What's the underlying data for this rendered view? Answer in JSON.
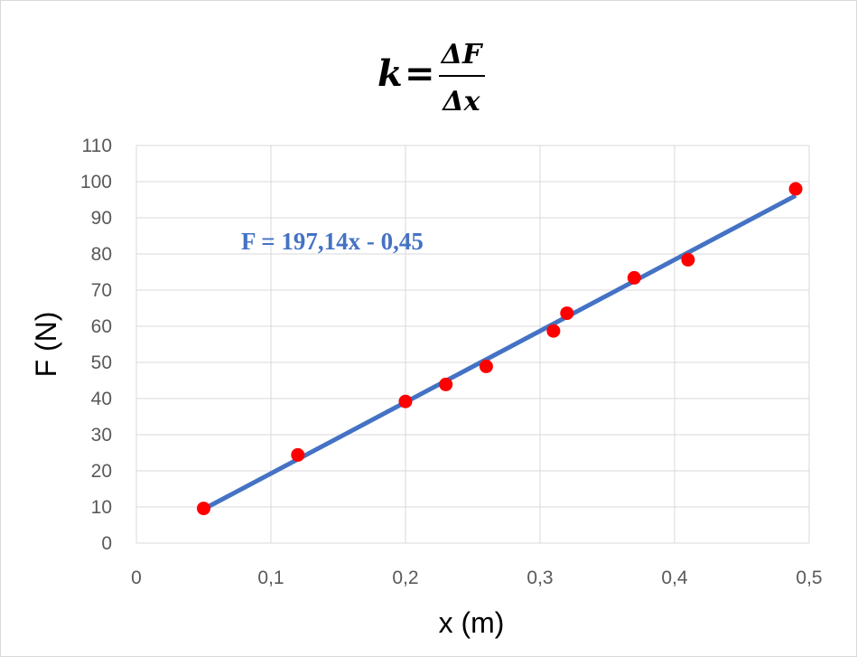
{
  "chart_data": {
    "type": "scatter",
    "title": {
      "lhs": "k",
      "eq": "=",
      "numerator": "ΔF",
      "denominator": "Δx"
    },
    "xlabel": "x (m)",
    "ylabel": "F (N)",
    "xlim": [
      0,
      0.5
    ],
    "ylim": [
      0,
      110
    ],
    "x_ticks": [
      "0",
      "0,1",
      "0,2",
      "0,3",
      "0,4",
      "0,5"
    ],
    "y_ticks": [
      "0",
      "10",
      "20",
      "30",
      "40",
      "50",
      "60",
      "70",
      "80",
      "90",
      "100",
      "110"
    ],
    "grid": true,
    "points": [
      {
        "x": 0.05,
        "y": 9.6
      },
      {
        "x": 0.12,
        "y": 24.4
      },
      {
        "x": 0.2,
        "y": 39.2
      },
      {
        "x": 0.23,
        "y": 43.9
      },
      {
        "x": 0.26,
        "y": 48.9
      },
      {
        "x": 0.31,
        "y": 58.7
      },
      {
        "x": 0.32,
        "y": 63.6
      },
      {
        "x": 0.37,
        "y": 73.4
      },
      {
        "x": 0.41,
        "y": 78.4
      },
      {
        "x": 0.49,
        "y": 98.0
      }
    ],
    "trendline": {
      "type": "linear",
      "slope": 197.14,
      "intercept": -0.45,
      "x_range": [
        0.05,
        0.49
      ],
      "label": "F = 197,14x - 0,45"
    },
    "colors": {
      "points": "#ff0000",
      "trendline": "#4472c4",
      "grid": "#d9d9d9"
    }
  }
}
